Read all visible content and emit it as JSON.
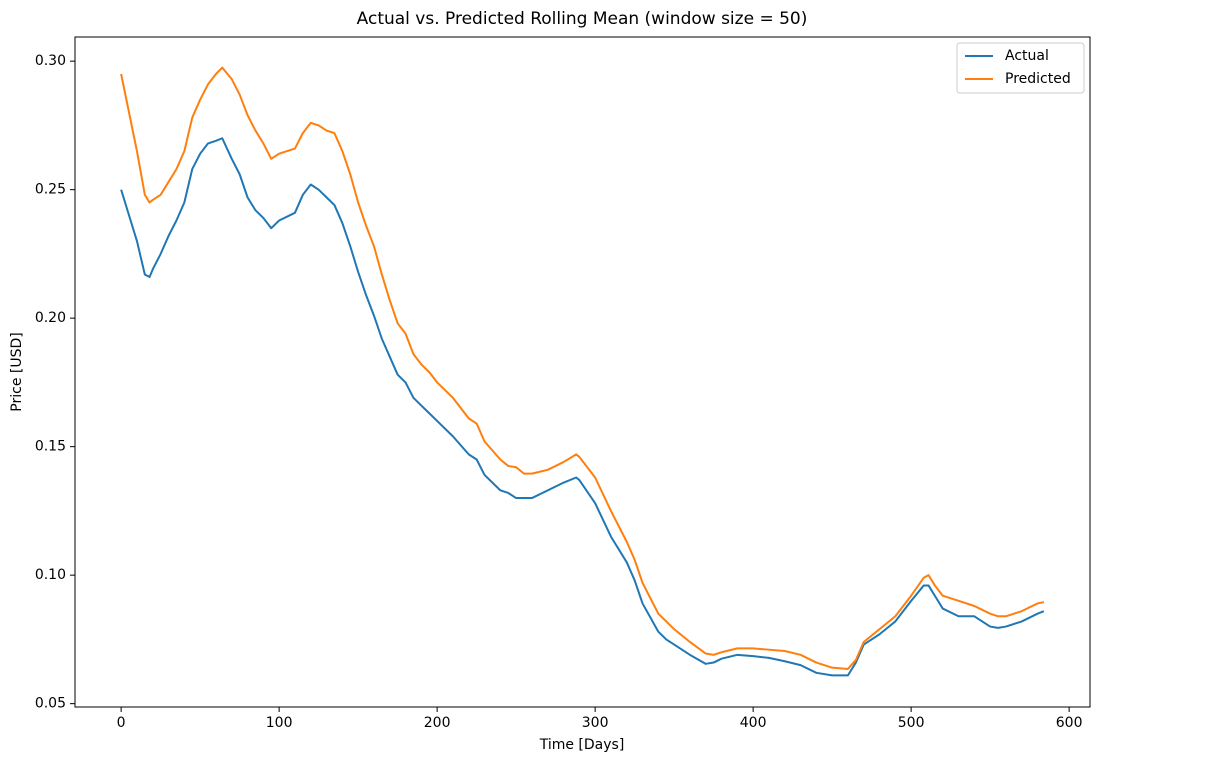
{
  "chart_data": {
    "type": "line",
    "title": "Actual vs. Predicted Rolling Mean (window size = 50)",
    "x_label": "Time [Days]",
    "y_label": "Price [USD]",
    "x": [
      0,
      5,
      10,
      15,
      18,
      20,
      25,
      30,
      35,
      40,
      45,
      50,
      55,
      60,
      64,
      70,
      75,
      80,
      85,
      90,
      95,
      100,
      110,
      115,
      120,
      125,
      130,
      135,
      140,
      145,
      150,
      155,
      160,
      165,
      170,
      175,
      180,
      185,
      190,
      195,
      200,
      210,
      220,
      225,
      230,
      240,
      245,
      250,
      255,
      260,
      270,
      280,
      288,
      290,
      300,
      310,
      320,
      325,
      330,
      340,
      345,
      350,
      360,
      370,
      375,
      380,
      390,
      400,
      410,
      420,
      430,
      440,
      450,
      460,
      465,
      470,
      480,
      490,
      500,
      508,
      511,
      515,
      520,
      530,
      540,
      550,
      555,
      560,
      570,
      580,
      584
    ],
    "series": [
      {
        "name": "Actual",
        "color": "#1f77b4",
        "values": [
          0.25,
          0.24,
          0.23,
          0.217,
          0.216,
          0.219,
          0.225,
          0.232,
          0.238,
          0.245,
          0.258,
          0.264,
          0.268,
          0.269,
          0.27,
          0.262,
          0.256,
          0.247,
          0.242,
          0.239,
          0.235,
          0.238,
          0.241,
          0.248,
          0.252,
          0.25,
          0.247,
          0.244,
          0.237,
          0.228,
          0.218,
          0.209,
          0.201,
          0.192,
          0.185,
          0.178,
          0.175,
          0.169,
          0.166,
          0.163,
          0.16,
          0.154,
          0.147,
          0.145,
          0.139,
          0.133,
          0.132,
          0.13,
          0.13,
          0.13,
          0.133,
          0.136,
          0.138,
          0.137,
          0.128,
          0.115,
          0.105,
          0.098,
          0.089,
          0.078,
          0.075,
          0.073,
          0.069,
          0.0655,
          0.066,
          0.0675,
          0.069,
          0.0685,
          0.0678,
          0.0665,
          0.065,
          0.062,
          0.061,
          0.061,
          0.066,
          0.073,
          0.077,
          0.082,
          0.09,
          0.096,
          0.096,
          0.092,
          0.087,
          0.084,
          0.084,
          0.08,
          0.0795,
          0.08,
          0.082,
          0.085,
          0.086
        ]
      },
      {
        "name": "Predicted",
        "color": "#ff7f0e",
        "values": [
          0.295,
          0.28,
          0.265,
          0.248,
          0.245,
          0.246,
          0.248,
          0.253,
          0.258,
          0.265,
          0.278,
          0.285,
          0.291,
          0.295,
          0.2975,
          0.293,
          0.287,
          0.279,
          0.273,
          0.268,
          0.262,
          0.264,
          0.266,
          0.272,
          0.276,
          0.275,
          0.273,
          0.272,
          0.265,
          0.256,
          0.245,
          0.236,
          0.228,
          0.217,
          0.207,
          0.198,
          0.194,
          0.186,
          0.182,
          0.179,
          0.175,
          0.169,
          0.161,
          0.159,
          0.152,
          0.145,
          0.1425,
          0.142,
          0.1395,
          0.1395,
          0.141,
          0.144,
          0.147,
          0.146,
          0.138,
          0.125,
          0.113,
          0.106,
          0.097,
          0.085,
          0.082,
          0.079,
          0.074,
          0.0695,
          0.069,
          0.07,
          0.0715,
          0.0715,
          0.071,
          0.0705,
          0.069,
          0.066,
          0.064,
          0.0635,
          0.067,
          0.074,
          0.079,
          0.084,
          0.092,
          0.099,
          0.1,
          0.096,
          0.092,
          0.09,
          0.088,
          0.085,
          0.084,
          0.084,
          0.086,
          0.089,
          0.0895
        ]
      }
    ],
    "xlim": [
      -29.2,
      613.2
    ],
    "ylim": [
      0.0487,
      0.3094
    ],
    "xticks": [
      0,
      100,
      200,
      300,
      400,
      500,
      600
    ],
    "yticks": [
      {
        "value": 0.05,
        "label": "0.05"
      },
      {
        "value": 0.1,
        "label": "0.10"
      },
      {
        "value": 0.15,
        "label": "0.15"
      },
      {
        "value": 0.2,
        "label": "0.20"
      },
      {
        "value": 0.25,
        "label": "0.25"
      },
      {
        "value": 0.3,
        "label": "0.30"
      }
    ],
    "legend": "upper right"
  }
}
